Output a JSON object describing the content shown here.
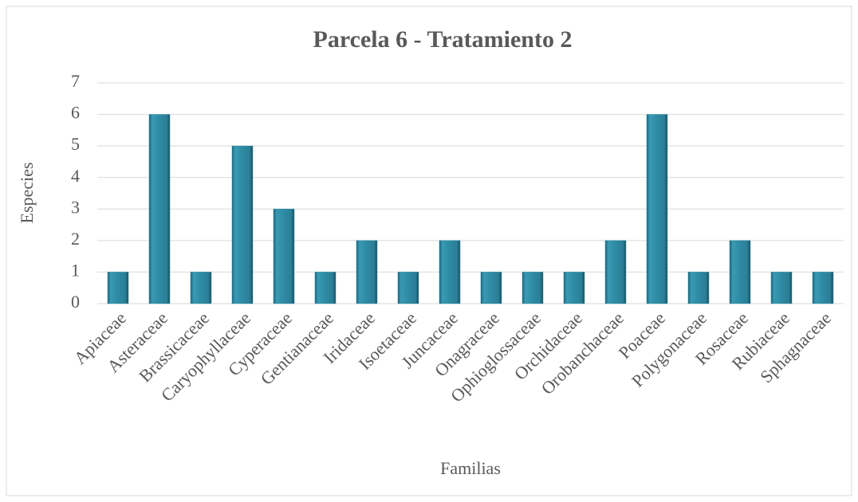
{
  "chart_data": {
    "type": "bar",
    "title": "Parcela 6 - Tratamiento 2",
    "x_label": "Familias",
    "y_label": "Especies",
    "categories": [
      "Apiaceae",
      "Asteraceae",
      "Brassicaceae",
      "Caryophyllaceae",
      "Cyperaceae",
      "Gentianaceae",
      "Iridaceae",
      "Isoetaceae",
      "Juncaceae",
      "Onagraceae",
      "Ophioglossaceae",
      "Orchidaceae",
      "Orobanchaceae",
      "Poaceae",
      "Polygonaceae",
      "Rosaceae",
      "Rubiaceae",
      "Sphagnaceae"
    ],
    "values": [
      1,
      6,
      1,
      5,
      3,
      1,
      2,
      1,
      2,
      1,
      1,
      1,
      2,
      6,
      1,
      2,
      1,
      1
    ],
    "color": "#2e8aa3",
    "ylim": [
      0,
      7
    ],
    "yticks": [
      0,
      1,
      2,
      3,
      4,
      5,
      6,
      7
    ],
    "grid": true
  }
}
